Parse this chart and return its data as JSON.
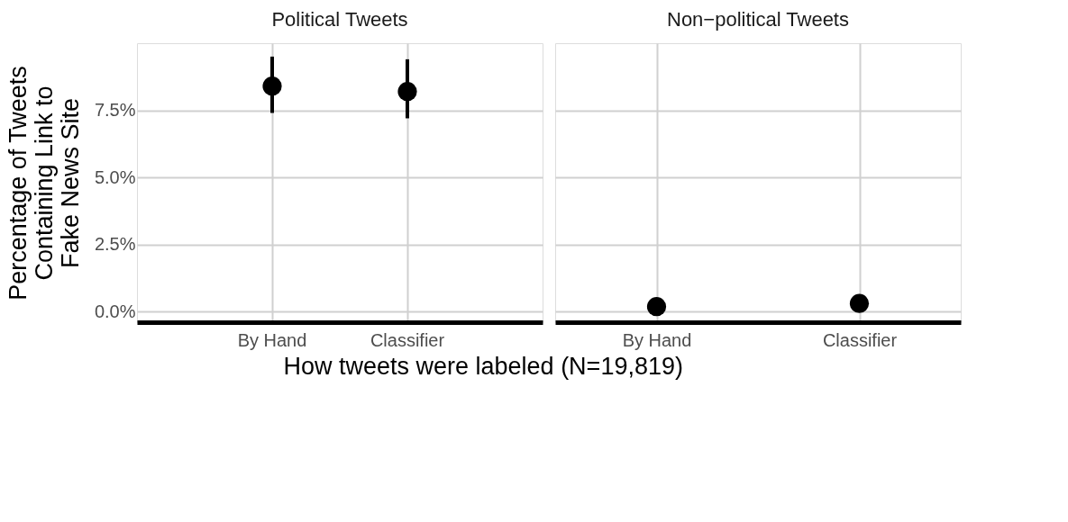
{
  "chart_data": [
    {
      "type": "scatter",
      "title": "Political Tweets",
      "ylabel": "Percentage of Tweets\nContaining Link to\nFake News Site",
      "xlabel": "How tweets were labeled (N=19,819)",
      "categories": [
        "By Hand",
        "Classifier"
      ],
      "marker": "circle",
      "grid": true,
      "series": [
        {
          "color": "#000000",
          "values": [
            8.4,
            8.2
          ],
          "errors": [
            [
              7.4,
              9.5
            ],
            [
              7.2,
              9.4
            ]
          ]
        }
      ],
      "ylim": [
        -0.4,
        10
      ],
      "yticks": [
        {
          "value": 0,
          "label": "0.0%"
        },
        {
          "value": 2.5,
          "label": "2.5%"
        },
        {
          "value": 5,
          "label": "5.0%"
        },
        {
          "value": 7.5,
          "label": "7.5%"
        }
      ]
    },
    {
      "type": "scatter",
      "title": "Non−political Tweets",
      "categories": [
        "By Hand",
        "Classifier"
      ],
      "marker": "circle",
      "grid": true,
      "tick_labels": "x",
      "series": [
        {
          "color": "#000000",
          "values": [
            0.18,
            0.3
          ]
        }
      ],
      "ylim": [
        -0.4,
        10
      ],
      "yticks": [
        0,
        2.5,
        5,
        7.5
      ]
    }
  ]
}
